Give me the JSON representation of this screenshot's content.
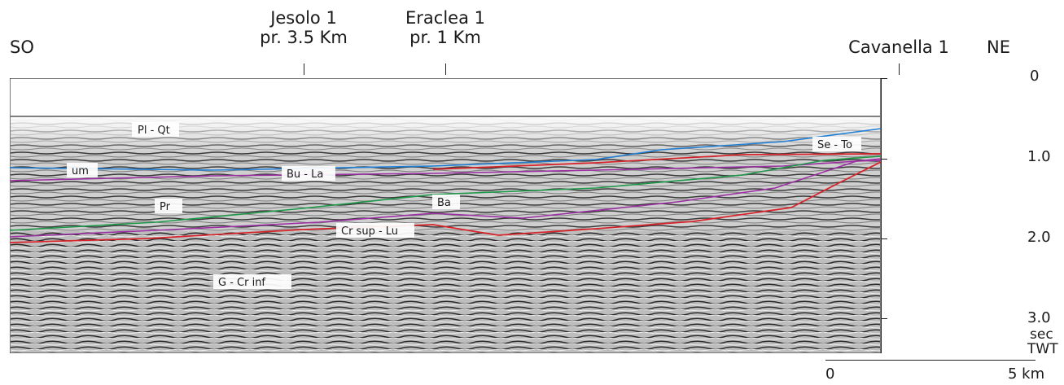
{
  "orientation": {
    "left": "SO",
    "right": "NE"
  },
  "wells": [
    {
      "line1": "Jesolo 1",
      "line2": "pr. 3.5 Km"
    },
    {
      "line1": "Eraclea 1",
      "line2": "pr. 1 Km"
    },
    {
      "line1": "Cavanella 1",
      "line2": ""
    }
  ],
  "time_axis": {
    "ticks": [
      "0",
      "1.0",
      "2.0",
      "3.0"
    ],
    "unit_line1": "sec",
    "unit_line2": "TWT"
  },
  "scale_bar": {
    "start": "0",
    "end": "5 km"
  },
  "horizons": [
    {
      "label": "Pl - Qt",
      "color": "#000000"
    },
    {
      "label": "Se - To",
      "color": "#1f7fd6"
    },
    {
      "label": "um",
      "color": "#1f7fd6"
    },
    {
      "label": "Bu - La",
      "color": "#9b2fa3"
    },
    {
      "label": "Pr",
      "color": "#1f9a4a"
    },
    {
      "label": "Ba",
      "color": "#9b2fa3"
    },
    {
      "label": "Cr sup - Lu",
      "color": "#d8232a"
    },
    {
      "label": "G - Cr inf",
      "color": "#000000"
    }
  ]
}
